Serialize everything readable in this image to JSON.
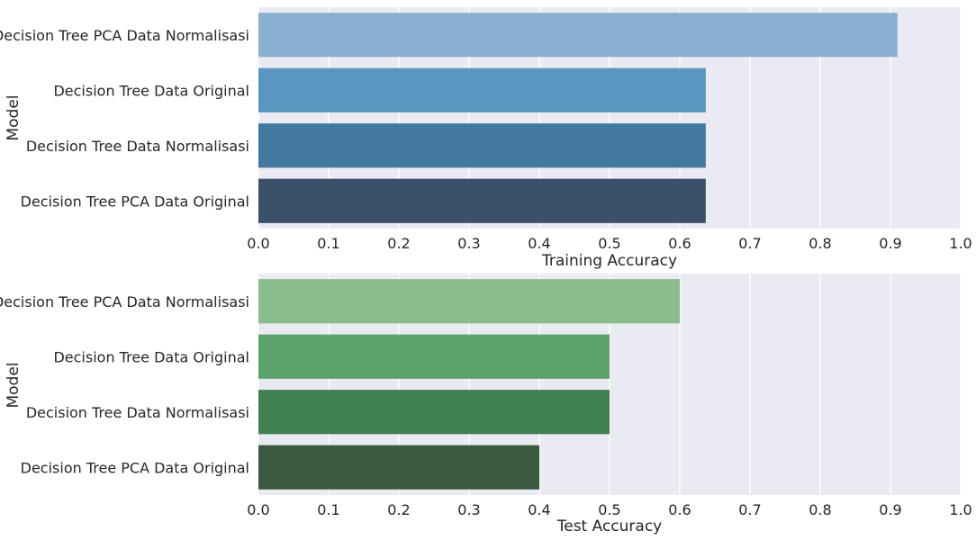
{
  "chart_data": [
    {
      "type": "bar",
      "orientation": "horizontal",
      "categories": [
        "Decision Tree PCA Data Normalisasi",
        "Decision Tree Data Original",
        "Decision Tree Data Normalisasi",
        "Decision Tree PCA Data Original"
      ],
      "values": [
        0.91,
        0.637,
        0.637,
        0.637
      ],
      "colors": [
        "#89b1cf",
        "#5b96c0",
        "#43799e",
        "#3b5169"
      ],
      "xlabel": "Training Accuracy",
      "ylabel": "Model",
      "xlim": [
        0,
        1
      ],
      "xticks": [
        "0.0",
        "0.1",
        "0.2",
        "0.3",
        "0.4",
        "0.5",
        "0.6",
        "0.7",
        "0.8",
        "0.9",
        "1.0"
      ],
      "grid": true,
      "background": "#eaeaf2"
    },
    {
      "type": "bar",
      "orientation": "horizontal",
      "categories": [
        "Decision Tree PCA Data Normalisasi",
        "Decision Tree Data Original",
        "Decision Tree Data Normalisasi",
        "Decision Tree PCA Data Original"
      ],
      "values": [
        0.6,
        0.5,
        0.5,
        0.4
      ],
      "colors": [
        "#89bd8b",
        "#5aa36a",
        "#3f8150",
        "#3b5a42"
      ],
      "xlabel": "Test Accuracy",
      "ylabel": "Model",
      "xlim": [
        0,
        1
      ],
      "xticks": [
        "0.0",
        "0.1",
        "0.2",
        "0.3",
        "0.4",
        "0.5",
        "0.6",
        "0.7",
        "0.8",
        "0.9",
        "1.0"
      ],
      "grid": true,
      "background": "#eaeaf2"
    }
  ]
}
